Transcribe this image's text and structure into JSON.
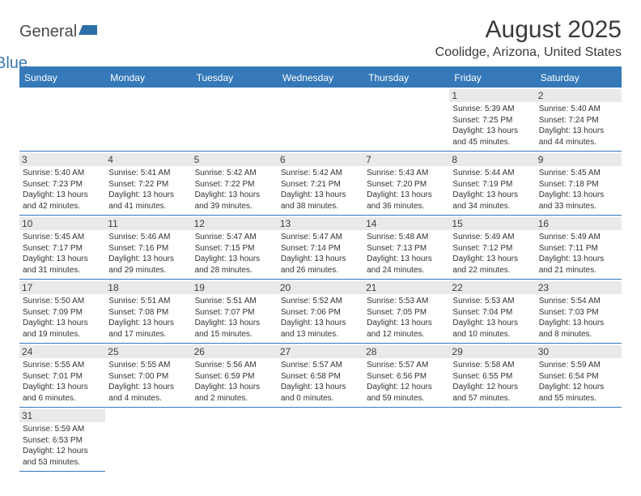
{
  "logo": {
    "text_general": "General",
    "text_blue": "Blue"
  },
  "title": "August 2025",
  "location": "Coolidge, Arizona, United States",
  "colors": {
    "header_bg": "#3579b8",
    "header_text": "#ffffff",
    "daynum_bg": "#e9e9e9",
    "border": "#3579b8",
    "body_text": "#333333"
  },
  "day_names": [
    "Sunday",
    "Monday",
    "Tuesday",
    "Wednesday",
    "Thursday",
    "Friday",
    "Saturday"
  ],
  "weeks": [
    [
      null,
      null,
      null,
      null,
      null,
      {
        "num": "1",
        "sunrise": "5:39 AM",
        "sunset": "7:25 PM",
        "daylight": "13 hours and 45 minutes."
      },
      {
        "num": "2",
        "sunrise": "5:40 AM",
        "sunset": "7:24 PM",
        "daylight": "13 hours and 44 minutes."
      }
    ],
    [
      {
        "num": "3",
        "sunrise": "5:40 AM",
        "sunset": "7:23 PM",
        "daylight": "13 hours and 42 minutes."
      },
      {
        "num": "4",
        "sunrise": "5:41 AM",
        "sunset": "7:22 PM",
        "daylight": "13 hours and 41 minutes."
      },
      {
        "num": "5",
        "sunrise": "5:42 AM",
        "sunset": "7:22 PM",
        "daylight": "13 hours and 39 minutes."
      },
      {
        "num": "6",
        "sunrise": "5:42 AM",
        "sunset": "7:21 PM",
        "daylight": "13 hours and 38 minutes."
      },
      {
        "num": "7",
        "sunrise": "5:43 AM",
        "sunset": "7:20 PM",
        "daylight": "13 hours and 36 minutes."
      },
      {
        "num": "8",
        "sunrise": "5:44 AM",
        "sunset": "7:19 PM",
        "daylight": "13 hours and 34 minutes."
      },
      {
        "num": "9",
        "sunrise": "5:45 AM",
        "sunset": "7:18 PM",
        "daylight": "13 hours and 33 minutes."
      }
    ],
    [
      {
        "num": "10",
        "sunrise": "5:45 AM",
        "sunset": "7:17 PM",
        "daylight": "13 hours and 31 minutes."
      },
      {
        "num": "11",
        "sunrise": "5:46 AM",
        "sunset": "7:16 PM",
        "daylight": "13 hours and 29 minutes."
      },
      {
        "num": "12",
        "sunrise": "5:47 AM",
        "sunset": "7:15 PM",
        "daylight": "13 hours and 28 minutes."
      },
      {
        "num": "13",
        "sunrise": "5:47 AM",
        "sunset": "7:14 PM",
        "daylight": "13 hours and 26 minutes."
      },
      {
        "num": "14",
        "sunrise": "5:48 AM",
        "sunset": "7:13 PM",
        "daylight": "13 hours and 24 minutes."
      },
      {
        "num": "15",
        "sunrise": "5:49 AM",
        "sunset": "7:12 PM",
        "daylight": "13 hours and 22 minutes."
      },
      {
        "num": "16",
        "sunrise": "5:49 AM",
        "sunset": "7:11 PM",
        "daylight": "13 hours and 21 minutes."
      }
    ],
    [
      {
        "num": "17",
        "sunrise": "5:50 AM",
        "sunset": "7:09 PM",
        "daylight": "13 hours and 19 minutes."
      },
      {
        "num": "18",
        "sunrise": "5:51 AM",
        "sunset": "7:08 PM",
        "daylight": "13 hours and 17 minutes."
      },
      {
        "num": "19",
        "sunrise": "5:51 AM",
        "sunset": "7:07 PM",
        "daylight": "13 hours and 15 minutes."
      },
      {
        "num": "20",
        "sunrise": "5:52 AM",
        "sunset": "7:06 PM",
        "daylight": "13 hours and 13 minutes."
      },
      {
        "num": "21",
        "sunrise": "5:53 AM",
        "sunset": "7:05 PM",
        "daylight": "13 hours and 12 minutes."
      },
      {
        "num": "22",
        "sunrise": "5:53 AM",
        "sunset": "7:04 PM",
        "daylight": "13 hours and 10 minutes."
      },
      {
        "num": "23",
        "sunrise": "5:54 AM",
        "sunset": "7:03 PM",
        "daylight": "13 hours and 8 minutes."
      }
    ],
    [
      {
        "num": "24",
        "sunrise": "5:55 AM",
        "sunset": "7:01 PM",
        "daylight": "13 hours and 6 minutes."
      },
      {
        "num": "25",
        "sunrise": "5:55 AM",
        "sunset": "7:00 PM",
        "daylight": "13 hours and 4 minutes."
      },
      {
        "num": "26",
        "sunrise": "5:56 AM",
        "sunset": "6:59 PM",
        "daylight": "13 hours and 2 minutes."
      },
      {
        "num": "27",
        "sunrise": "5:57 AM",
        "sunset": "6:58 PM",
        "daylight": "13 hours and 0 minutes."
      },
      {
        "num": "28",
        "sunrise": "5:57 AM",
        "sunset": "6:56 PM",
        "daylight": "12 hours and 59 minutes."
      },
      {
        "num": "29",
        "sunrise": "5:58 AM",
        "sunset": "6:55 PM",
        "daylight": "12 hours and 57 minutes."
      },
      {
        "num": "30",
        "sunrise": "5:59 AM",
        "sunset": "6:54 PM",
        "daylight": "12 hours and 55 minutes."
      }
    ],
    [
      {
        "num": "31",
        "sunrise": "5:59 AM",
        "sunset": "6:53 PM",
        "daylight": "12 hours and 53 minutes."
      },
      null,
      null,
      null,
      null,
      null,
      null
    ]
  ],
  "labels": {
    "sunrise": "Sunrise: ",
    "sunset": "Sunset: ",
    "daylight": "Daylight: "
  }
}
